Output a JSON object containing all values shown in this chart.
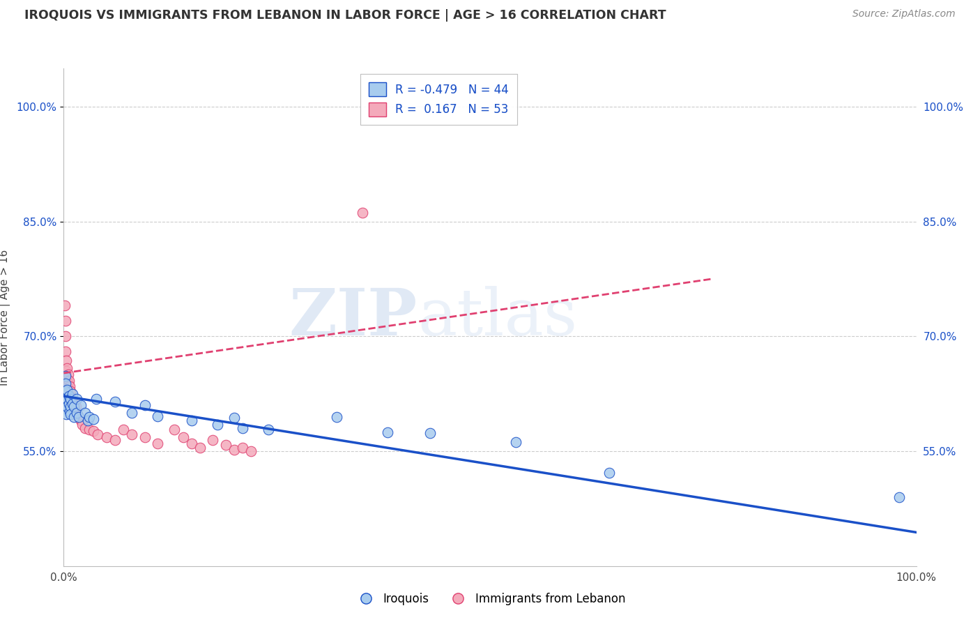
{
  "title": "IROQUOIS VS IMMIGRANTS FROM LEBANON IN LABOR FORCE | AGE > 16 CORRELATION CHART",
  "source": "Source: ZipAtlas.com",
  "ylabel": "In Labor Force | Age > 16",
  "xlim": [
    0.0,
    1.0
  ],
  "ylim": [
    0.4,
    1.05
  ],
  "ytick_values": [
    0.55,
    0.7,
    0.85,
    1.0
  ],
  "ytick_labels": [
    "55.0%",
    "70.0%",
    "85.0%",
    "100.0%"
  ],
  "xtick_values": [
    0.0,
    1.0
  ],
  "xtick_labels": [
    "0.0%",
    "100.0%"
  ],
  "legend_r1": "R = -0.479",
  "legend_n1": "N = 44",
  "legend_r2": "R =  0.167",
  "legend_n2": "N = 53",
  "color_blue": "#A8CCEE",
  "color_pink": "#F4AABB",
  "line_blue": "#1A50C8",
  "line_pink": "#E04070",
  "watermark_zip": "ZIP",
  "watermark_atlas": "atlas",
  "blue_scatter": [
    [
      0.002,
      0.648
    ],
    [
      0.002,
      0.638
    ],
    [
      0.002,
      0.628
    ],
    [
      0.002,
      0.618
    ],
    [
      0.002,
      0.608
    ],
    [
      0.002,
      0.618
    ],
    [
      0.003,
      0.598
    ],
    [
      0.004,
      0.63
    ],
    [
      0.004,
      0.618
    ],
    [
      0.004,
      0.608
    ],
    [
      0.006,
      0.622
    ],
    [
      0.006,
      0.612
    ],
    [
      0.007,
      0.602
    ],
    [
      0.008,
      0.618
    ],
    [
      0.008,
      0.608
    ],
    [
      0.008,
      0.598
    ],
    [
      0.01,
      0.625
    ],
    [
      0.01,
      0.612
    ],
    [
      0.012,
      0.608
    ],
    [
      0.012,
      0.595
    ],
    [
      0.015,
      0.618
    ],
    [
      0.015,
      0.6
    ],
    [
      0.018,
      0.595
    ],
    [
      0.02,
      0.61
    ],
    [
      0.025,
      0.6
    ],
    [
      0.028,
      0.59
    ],
    [
      0.03,
      0.595
    ],
    [
      0.035,
      0.592
    ],
    [
      0.038,
      0.618
    ],
    [
      0.06,
      0.615
    ],
    [
      0.08,
      0.6
    ],
    [
      0.095,
      0.61
    ],
    [
      0.11,
      0.596
    ],
    [
      0.15,
      0.59
    ],
    [
      0.18,
      0.585
    ],
    [
      0.2,
      0.594
    ],
    [
      0.21,
      0.58
    ],
    [
      0.24,
      0.578
    ],
    [
      0.32,
      0.595
    ],
    [
      0.38,
      0.575
    ],
    [
      0.43,
      0.574
    ],
    [
      0.53,
      0.562
    ],
    [
      0.64,
      0.522
    ],
    [
      0.98,
      0.49
    ]
  ],
  "pink_scatter": [
    [
      0.001,
      0.74
    ],
    [
      0.002,
      0.72
    ],
    [
      0.002,
      0.7
    ],
    [
      0.002,
      0.68
    ],
    [
      0.003,
      0.668
    ],
    [
      0.003,
      0.655
    ],
    [
      0.003,
      0.64
    ],
    [
      0.004,
      0.658
    ],
    [
      0.004,
      0.645
    ],
    [
      0.004,
      0.632
    ],
    [
      0.005,
      0.65
    ],
    [
      0.005,
      0.638
    ],
    [
      0.005,
      0.624
    ],
    [
      0.006,
      0.642
    ],
    [
      0.006,
      0.63
    ],
    [
      0.006,
      0.618
    ],
    [
      0.007,
      0.635
    ],
    [
      0.007,
      0.622
    ],
    [
      0.007,
      0.61
    ],
    [
      0.008,
      0.628
    ],
    [
      0.008,
      0.615
    ],
    [
      0.008,
      0.602
    ],
    [
      0.009,
      0.62
    ],
    [
      0.009,
      0.608
    ],
    [
      0.01,
      0.615
    ],
    [
      0.01,
      0.602
    ],
    [
      0.012,
      0.612
    ],
    [
      0.012,
      0.6
    ],
    [
      0.014,
      0.608
    ],
    [
      0.016,
      0.598
    ],
    [
      0.018,
      0.594
    ],
    [
      0.02,
      0.59
    ],
    [
      0.022,
      0.585
    ],
    [
      0.025,
      0.58
    ],
    [
      0.03,
      0.578
    ],
    [
      0.035,
      0.576
    ],
    [
      0.04,
      0.572
    ],
    [
      0.05,
      0.568
    ],
    [
      0.06,
      0.565
    ],
    [
      0.07,
      0.578
    ],
    [
      0.08,
      0.572
    ],
    [
      0.095,
      0.568
    ],
    [
      0.11,
      0.56
    ],
    [
      0.13,
      0.578
    ],
    [
      0.14,
      0.568
    ],
    [
      0.15,
      0.56
    ],
    [
      0.16,
      0.555
    ],
    [
      0.175,
      0.565
    ],
    [
      0.19,
      0.558
    ],
    [
      0.2,
      0.552
    ],
    [
      0.21,
      0.555
    ],
    [
      0.22,
      0.55
    ],
    [
      0.35,
      0.862
    ]
  ],
  "blue_trend_x": [
    0.0,
    1.0
  ],
  "blue_trend_y": [
    0.622,
    0.444
  ],
  "pink_trend_x": [
    0.0,
    0.76
  ],
  "pink_trend_y": [
    0.652,
    0.775
  ],
  "background_color": "#FFFFFF",
  "grid_color": "#CCCCCC"
}
